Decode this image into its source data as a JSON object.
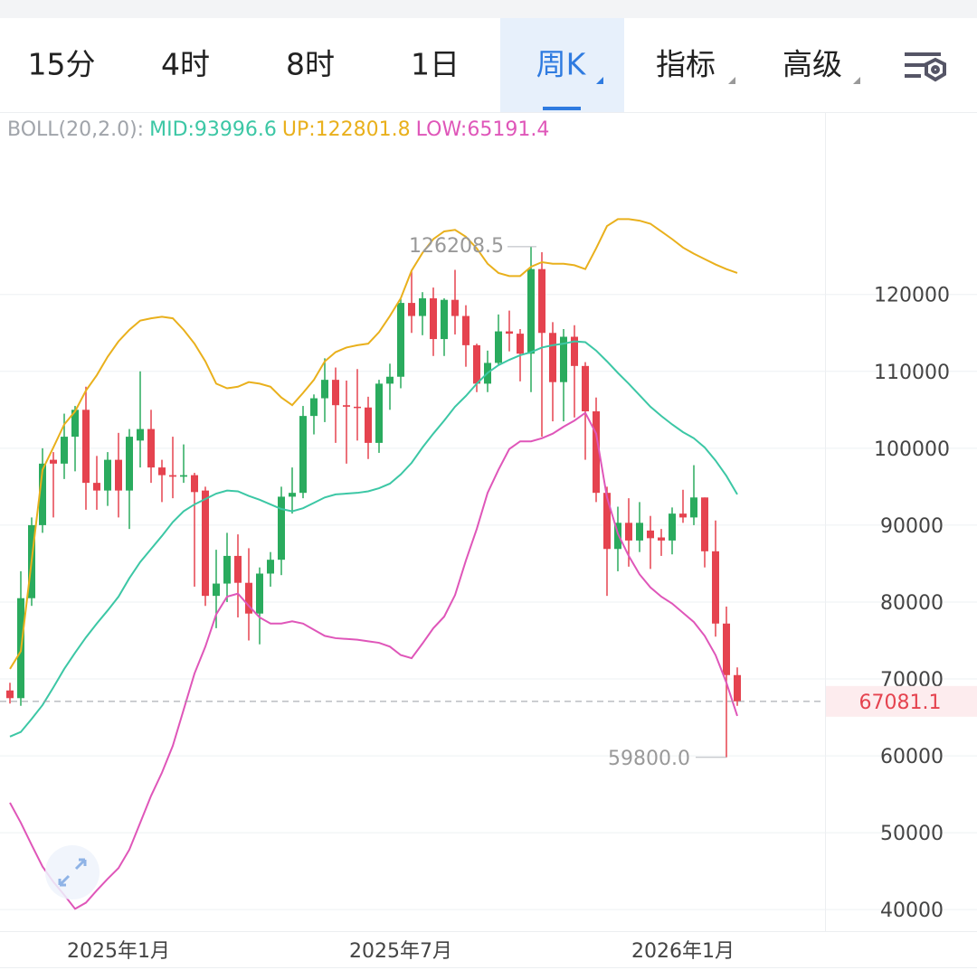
{
  "tabs": [
    "15分",
    "4时",
    "8时",
    "1日",
    "周K",
    "指标",
    "高级"
  ],
  "active_tab": 4,
  "chart_data": {
    "type": "candlestick",
    "indicator": "BOLL(20,2.0):",
    "categories": [
      null,
      null,
      null,
      null,
      null,
      null,
      null,
      null,
      null,
      null,
      "2025年1月",
      null,
      null,
      null,
      null,
      null,
      null,
      null,
      null,
      null,
      null,
      null,
      null,
      null,
      null,
      null,
      null,
      null,
      null,
      null,
      null,
      null,
      null,
      null,
      null,
      null,
      "2025年7月",
      null,
      null,
      null,
      null,
      null,
      null,
      null,
      null,
      null,
      null,
      null,
      null,
      null,
      null,
      null,
      null,
      null,
      null,
      null,
      null,
      null,
      null,
      null,
      null,
      null,
      "2026年1月",
      null,
      null,
      null,
      null,
      null
    ],
    "open": [
      68500,
      67500,
      80500,
      90000,
      98500,
      98000,
      101500,
      105000,
      95500,
      94500,
      98500,
      94500,
      101000,
      102500,
      97500,
      96500,
      96300,
      96500,
      94500,
      80800,
      82400,
      86000,
      82500,
      78500,
      83700,
      85500,
      93700,
      94200,
      104200,
      106500,
      108900,
      105600,
      105400,
      105300,
      100700,
      108400,
      109300,
      118900,
      117200,
      119500,
      114200,
      119300,
      117200,
      113400,
      108400,
      111100,
      115200,
      114900,
      112300,
      123300,
      115000,
      108600,
      114500,
      110700,
      104800,
      94200,
      86900,
      90300,
      88000,
      89300,
      88400,
      88000,
      91500,
      91000,
      93600,
      86600,
      77200,
      70500
    ],
    "high": [
      69500,
      84000,
      91000,
      100000,
      99500,
      104500,
      105500,
      108000,
      99000,
      99500,
      102000,
      102500,
      110000,
      105000,
      98500,
      101500,
      100500,
      96800,
      95000,
      86800,
      89000,
      88800,
      87000,
      84500,
      86500,
      95000,
      97500,
      105500,
      107000,
      111700,
      110500,
      108800,
      110300,
      106700,
      108900,
      111000,
      119400,
      123200,
      120300,
      120900,
      119500,
      123200,
      118600,
      113600,
      112700,
      117400,
      117900,
      115500,
      126208.5,
      125500,
      116400,
      115500,
      116000,
      111200,
      106600,
      95000,
      92400,
      93500,
      93000,
      91200,
      89500,
      92300,
      94600,
      97800,
      93600,
      90600,
      79400,
      71500
    ],
    "low": [
      66800,
      66500,
      79500,
      89000,
      91000,
      96000,
      97000,
      92000,
      92000,
      92500,
      91000,
      89500,
      97500,
      95500,
      93000,
      93500,
      95500,
      82000,
      79500,
      76600,
      80000,
      78000,
      75000,
      74500,
      82000,
      83500,
      91500,
      93500,
      101800,
      103400,
      100700,
      98000,
      101000,
      98600,
      99400,
      105000,
      107800,
      115000,
      114700,
      112000,
      112000,
      114800,
      110600,
      107300,
      107300,
      110800,
      112600,
      108700,
      107300,
      101500,
      103500,
      103500,
      104000,
      98500,
      93000,
      80800,
      84000,
      84600,
      86500,
      84300,
      86000,
      86200,
      90300,
      90000,
      84500,
      75500,
      59800,
      66500
    ],
    "close": [
      67500,
      80500,
      90000,
      98000,
      98000,
      101500,
      105000,
      95500,
      94500,
      98500,
      94500,
      101500,
      102500,
      97500,
      96500,
      96300,
      96500,
      94300,
      80800,
      82400,
      86000,
      82500,
      78500,
      83700,
      85500,
      93700,
      94200,
      104200,
      106500,
      108900,
      105600,
      105400,
      105300,
      100700,
      108400,
      109300,
      118900,
      117200,
      119500,
      114200,
      119300,
      117200,
      113400,
      108400,
      111100,
      115200,
      114900,
      112300,
      123300,
      115000,
      108600,
      114500,
      110700,
      104800,
      94200,
      86900,
      90300,
      88000,
      90300,
      88300,
      88000,
      91500,
      91000,
      93600,
      86600,
      77200,
      70500,
      67081.1
    ],
    "up_color": "#2aab5e",
    "down_color": "#e5434f",
    "lines": [
      {
        "name": "MID:93996.6",
        "color": "#3cc7a5",
        "values": [
          62500,
          63100,
          64800,
          66600,
          68900,
          71300,
          73400,
          75400,
          77200,
          78900,
          80700,
          83100,
          85200,
          86900,
          88600,
          90400,
          91800,
          92700,
          93400,
          94100,
          94500,
          94400,
          93800,
          93300,
          92700,
          92100,
          91800,
          92200,
          92900,
          93600,
          94000,
          94100,
          94200,
          94400,
          94800,
          95400,
          96600,
          98100,
          100100,
          101900,
          103600,
          105400,
          106800,
          108400,
          109800,
          110800,
          111500,
          112100,
          112500,
          113100,
          113400,
          113600,
          113900,
          113800,
          112700,
          111300,
          109800,
          108400,
          106900,
          105400,
          104200,
          103100,
          102100,
          101300,
          100100,
          98400,
          96400,
          93996.6
        ]
      },
      {
        "name": "UP:122801.8",
        "color": "#e9b01c",
        "values": [
          71300,
          73600,
          85400,
          97200,
          100100,
          103100,
          104800,
          107500,
          109500,
          111900,
          113900,
          115400,
          116600,
          116900,
          117100,
          116900,
          115400,
          113600,
          111300,
          108400,
          107800,
          108000,
          108600,
          108400,
          108000,
          106600,
          105600,
          107200,
          108900,
          111300,
          112500,
          113100,
          113400,
          113600,
          115100,
          117200,
          119500,
          123100,
          125400,
          127200,
          128200,
          128400,
          127500,
          126000,
          124000,
          122800,
          122400,
          122400,
          123600,
          124200,
          124000,
          124000,
          123800,
          123300,
          126000,
          128900,
          129800,
          129800,
          129600,
          129200,
          128200,
          127200,
          126100,
          125300,
          124600,
          123900,
          123300,
          122801.8
        ]
      },
      {
        "name": "LOW:65191.4",
        "color": "#df56b9",
        "values": [
          53900,
          51300,
          48400,
          45600,
          43600,
          41900,
          40100,
          40900,
          42500,
          44000,
          45400,
          47800,
          51300,
          54800,
          57800,
          61300,
          66000,
          70700,
          74200,
          78400,
          80700,
          81100,
          79500,
          78000,
          77200,
          77200,
          77500,
          77200,
          76400,
          75600,
          75300,
          75200,
          75100,
          74900,
          74700,
          74200,
          73100,
          72700,
          74600,
          76600,
          78100,
          80900,
          85400,
          89500,
          94200,
          97200,
          99900,
          100900,
          100900,
          101300,
          101900,
          102800,
          103600,
          104600,
          101900,
          93600,
          88900,
          86000,
          83600,
          81900,
          80700,
          79800,
          78600,
          77400,
          75600,
          73100,
          69500,
          65191.4
        ]
      }
    ],
    "ylim": [
      37200,
      143600
    ],
    "yticks": [
      40000,
      50000,
      60000,
      70000,
      80000,
      90000,
      100000,
      110000,
      120000
    ],
    "grid": true,
    "last_price": 67081.1,
    "high_label": 126208.5,
    "low_label": {
      "value": 59800,
      "label": "59800.0"
    }
  }
}
